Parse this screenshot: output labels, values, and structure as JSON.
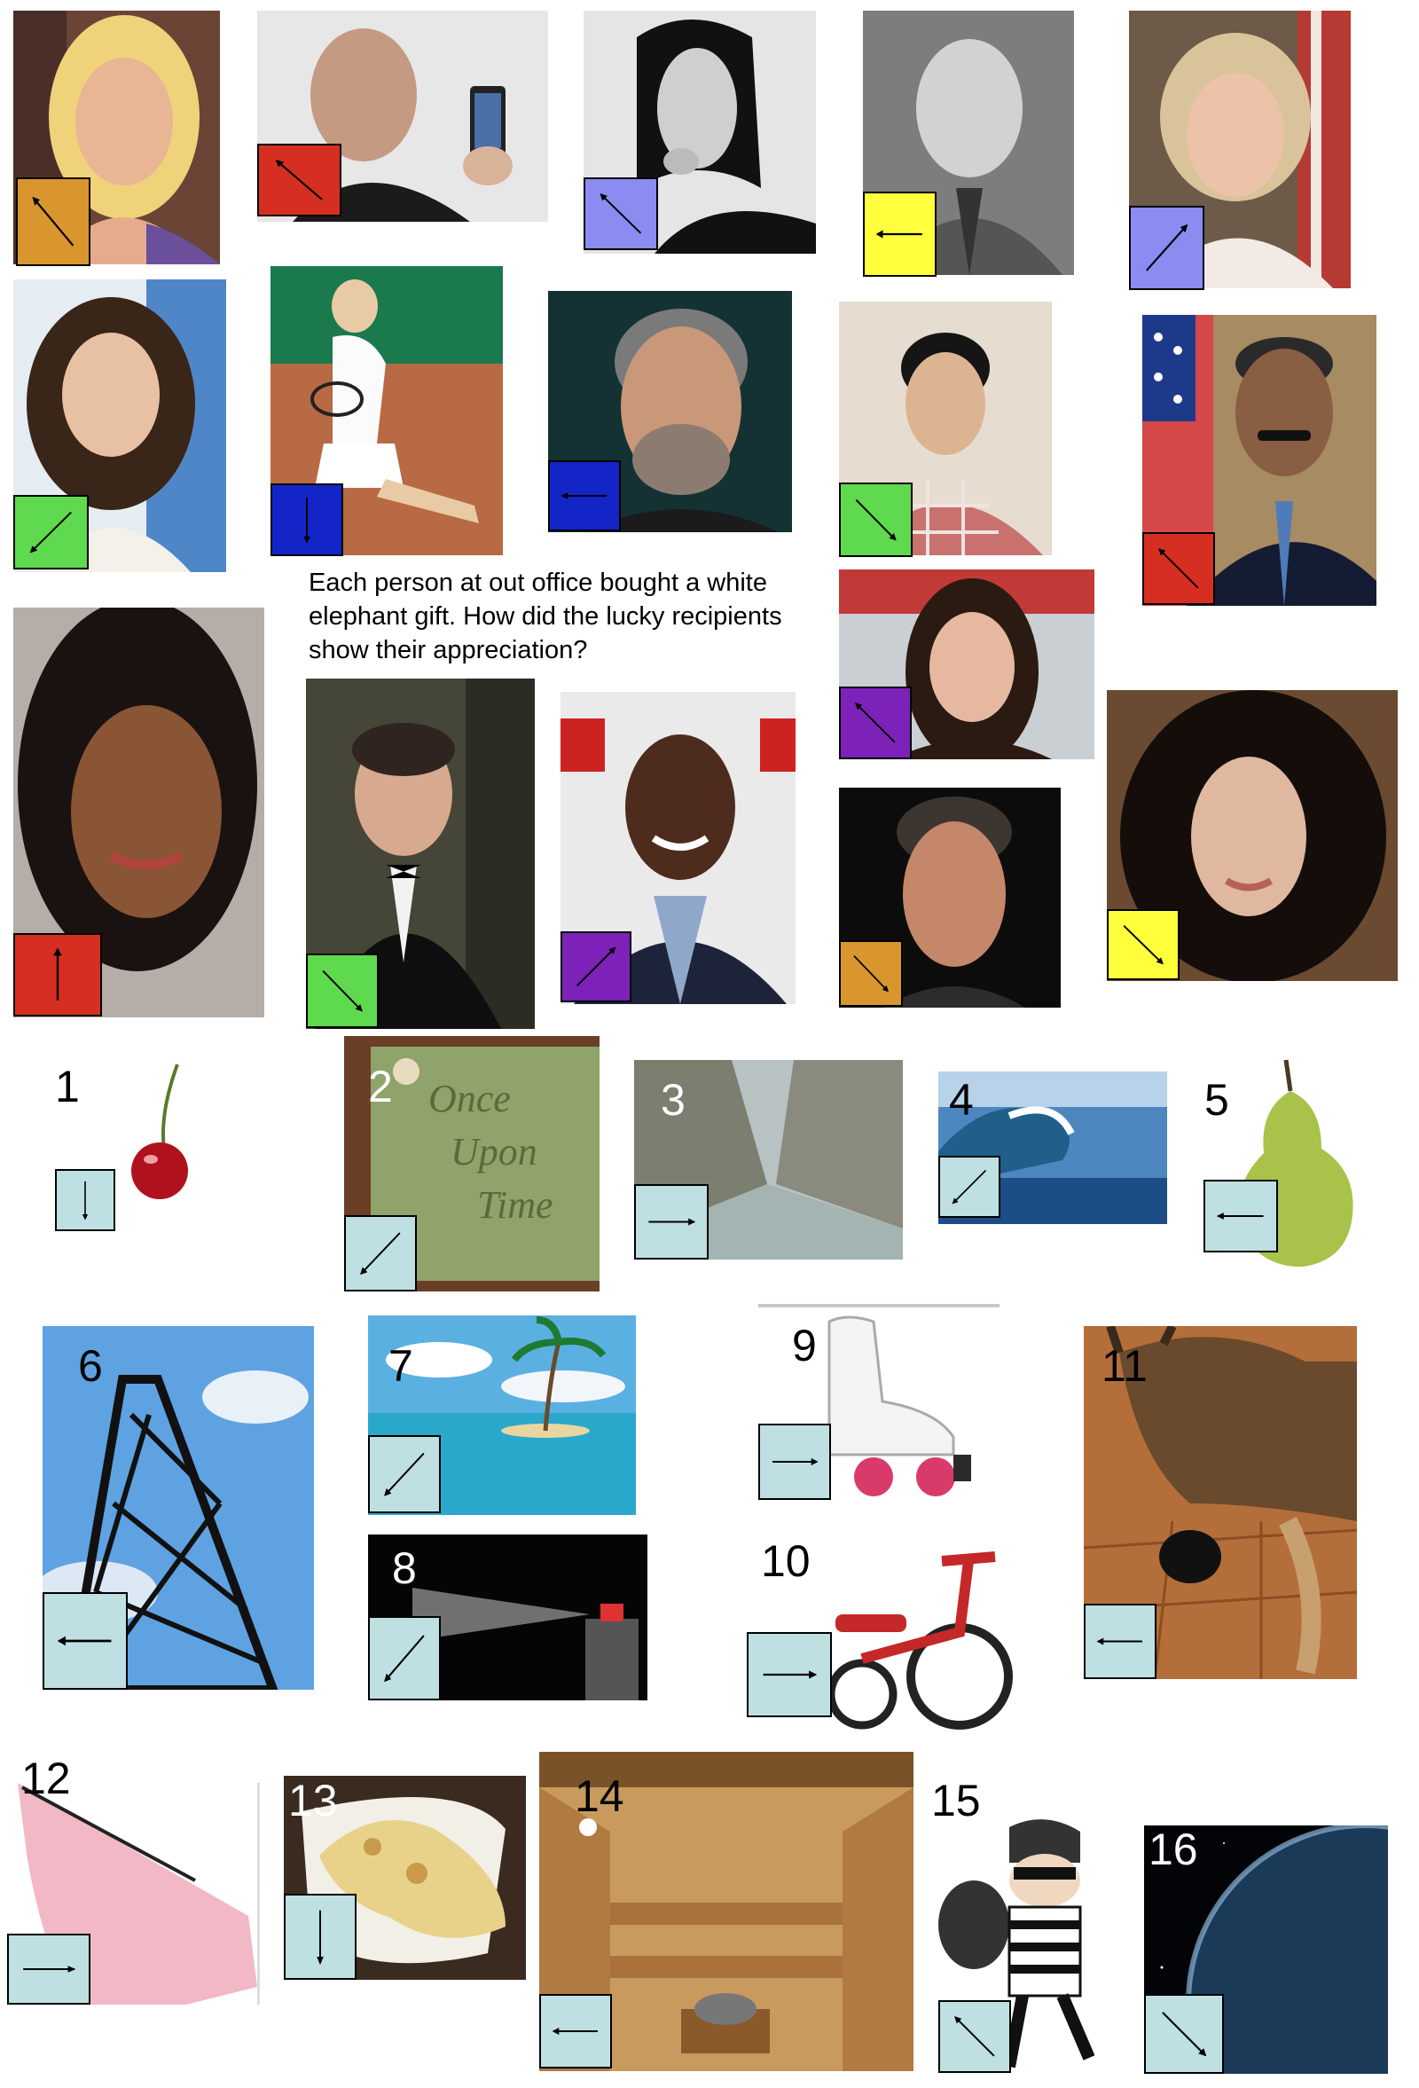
{
  "caption": "Each person at out office bought a white elephant gift. How did the lucky recipients show their appreciation?",
  "colors": {
    "orange": "#d9962e",
    "red": "#d62f22",
    "periwinkle": "#8a8cf2",
    "yellow": "#ffff3c",
    "green": "#5fd94d",
    "blue": "#1425c8",
    "purple": "#7c22b8",
    "lightblue": "#bfe0e2"
  },
  "people": [
    {
      "name_icon": "blonde-woman-portrait",
      "box_color": "orange",
      "arrow": "up-left"
    },
    {
      "name_icon": "man-with-phone-portrait",
      "box_color": "red",
      "arrow": "up-left"
    },
    {
      "name_icon": "bw-man-smoking-portrait",
      "box_color": "periwinkle",
      "arrow": "up-left"
    },
    {
      "name_icon": "bw-bald-man-portrait",
      "box_color": "yellow",
      "arrow": "left"
    },
    {
      "name_icon": "woman-flag-portrait",
      "box_color": "periwinkle",
      "arrow": "up-right"
    },
    {
      "name_icon": "brunette-woman-portrait",
      "box_color": "green",
      "arrow": "down-left"
    },
    {
      "name_icon": "tennis-player-photo",
      "box_color": "blue",
      "arrow": "down"
    },
    {
      "name_icon": "gray-haired-man-portrait",
      "box_color": "blue",
      "arrow": "left"
    },
    {
      "name_icon": "young-man-plaid-portrait",
      "box_color": "green",
      "arrow": "down-right"
    },
    {
      "name_icon": "man-mustache-flag-portrait",
      "box_color": "red",
      "arrow": "up-left"
    },
    {
      "name_icon": "smiling-woman-portrait",
      "box_color": "red",
      "arrow": "up"
    },
    {
      "name_icon": "man-tuxedo-portrait",
      "box_color": "green",
      "arrow": "down-right"
    },
    {
      "name_icon": "comedian-portrait",
      "box_color": "purple",
      "arrow": "up-right"
    },
    {
      "name_icon": "dark-haired-woman-portrait",
      "box_color": "purple",
      "arrow": "up-left"
    },
    {
      "name_icon": "curly-haired-man-portrait",
      "box_color": "orange",
      "arrow": "down-right"
    },
    {
      "name_icon": "curly-dark-woman-portrait",
      "box_color": "yellow",
      "arrow": "down-right"
    }
  ],
  "gifts": [
    {
      "number": "1",
      "icon": "cherry",
      "arrow": "down"
    },
    {
      "number": "2",
      "icon": "once-upon-time-book",
      "arrow": "down-left",
      "book_text": [
        "Once",
        "Upon",
        "Time"
      ]
    },
    {
      "number": "3",
      "icon": "gorge-river",
      "arrow": "right"
    },
    {
      "number": "4",
      "icon": "ocean-wave",
      "arrow": "down-left"
    },
    {
      "number": "5",
      "icon": "pear",
      "arrow": "left"
    },
    {
      "number": "6",
      "icon": "oil-derrick",
      "arrow": "left"
    },
    {
      "number": "7",
      "icon": "tropical-island",
      "arrow": "down-left"
    },
    {
      "number": "8",
      "icon": "spray-can",
      "arrow": "down-left"
    },
    {
      "number": "9",
      "icon": "roller-skate",
      "arrow": "right"
    },
    {
      "number": "10",
      "icon": "tricycle",
      "arrow": "right"
    },
    {
      "number": "11",
      "icon": "dog-and-kitten",
      "arrow": "left"
    },
    {
      "number": "12",
      "icon": "pink-shirt-sleeve",
      "arrow": "right"
    },
    {
      "number": "13",
      "icon": "naan-bread",
      "arrow": "down"
    },
    {
      "number": "14",
      "icon": "sauna-room",
      "arrow": "left"
    },
    {
      "number": "15",
      "icon": "cartoon-burglar",
      "arrow": "up-left"
    },
    {
      "number": "16",
      "icon": "planet-in-space",
      "arrow": "down-right"
    }
  ]
}
